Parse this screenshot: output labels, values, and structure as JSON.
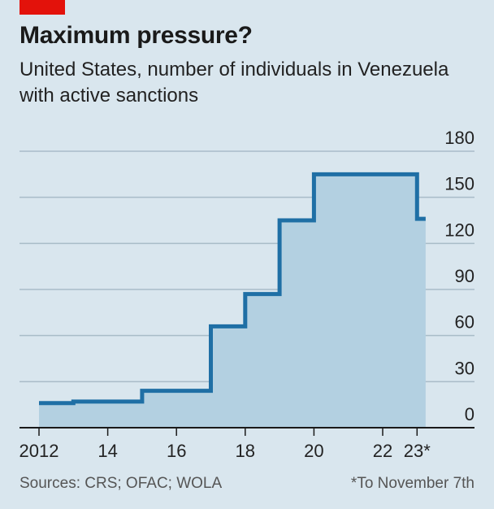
{
  "header": {
    "title": "Maximum pressure?",
    "subtitle": "United States, number of individuals in Venezuela with active sanctions"
  },
  "footer": {
    "sources": "Sources: CRS; OFAC; WOLA",
    "note": "*To November 7th"
  },
  "colors": {
    "accent": "#e3120b",
    "line": "#1f6fa5",
    "fill": "#b3d0e1",
    "background": "#d9e6ee"
  },
  "chart_data": {
    "type": "area",
    "title": "Maximum pressure?",
    "subtitle": "United States, number of individuals in Venezuela with active sanctions",
    "step": true,
    "x_ticks": [
      {
        "value": 2012,
        "label": "2012"
      },
      {
        "value": 2014,
        "label": "14"
      },
      {
        "value": 2016,
        "label": "16"
      },
      {
        "value": 2018,
        "label": "18"
      },
      {
        "value": 2020,
        "label": "20"
      },
      {
        "value": 2022,
        "label": "22"
      },
      {
        "value": 2023,
        "label": "23*"
      }
    ],
    "y_ticks": [
      0,
      30,
      60,
      90,
      120,
      150,
      180
    ],
    "xlim": [
      2011.5,
      2024.5
    ],
    "ylim": [
      0,
      180
    ],
    "grid": true,
    "series": [
      {
        "points": [
          {
            "x": 2012,
            "y": 16
          },
          {
            "x": 2013,
            "y": 17
          },
          {
            "x": 2015,
            "y": 24
          },
          {
            "x": 2017,
            "y": 66
          },
          {
            "x": 2018,
            "y": 87
          },
          {
            "x": 2019,
            "y": 135
          },
          {
            "x": 2020,
            "y": 165
          },
          {
            "x": 2023,
            "y": 136
          }
        ],
        "x_end": 2023.25
      }
    ]
  }
}
